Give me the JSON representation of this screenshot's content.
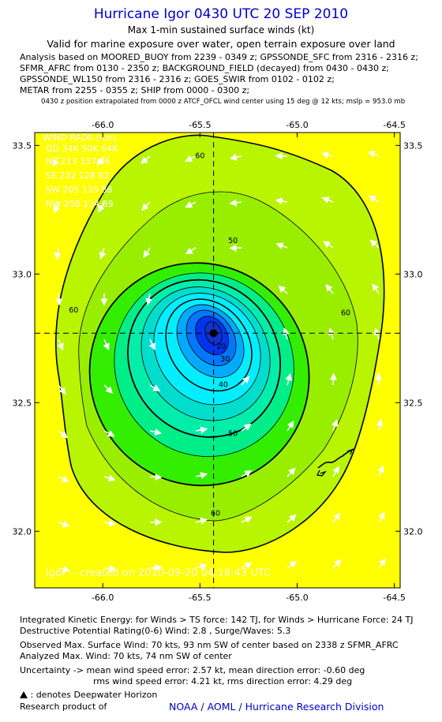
{
  "header": {
    "title": "Hurricane Igor 0430 UTC 20 SEP 2010",
    "subtitle": "Max 1-min sustained surface winds (kt)",
    "validity": "Valid for marine exposure over water, open terrain exposure over land",
    "analysis_lines": [
      "Analysis based on MOORED_BUOY from 2239 - 0349 z; GPSSONDE_SFC from 2316 - 2316 z;",
      "SFMR_AFRC from 0130 - 2350 z; BACKGROUND_FIELD (decayed) from 0430 - 0430 z;",
      "GPSSONDE_WL150 from 2316 - 2316 z; GOES_SWIR from 0102 - 0102 z;",
      "METAR from 2255 - 0355 z; SHIP from 0000 - 0300 z;"
    ],
    "position_note": "0430 z position extrapolated from 0000 z ATCF_OFCL wind center using 15 deg @ 12 kts; mslp = 953.0 mb"
  },
  "chart_data": {
    "type": "contour",
    "x_ticks": [
      "-66.0",
      "-65.5",
      "-65.0",
      "-64.5"
    ],
    "y_ticks": [
      "33.5",
      "33.0",
      "32.5",
      "32.0"
    ],
    "xlim": [
      -66.35,
      -64.47
    ],
    "ylim": [
      31.78,
      33.55
    ],
    "grid": false,
    "center": {
      "lon": -65.43,
      "lat": 32.77
    },
    "contour_labels": [
      {
        "value": "60",
        "lon": -65.5,
        "lat": 33.45
      },
      {
        "value": "50",
        "lon": -65.33,
        "lat": 33.12
      },
      {
        "value": "60",
        "lon": -66.15,
        "lat": 32.85
      },
      {
        "value": "60",
        "lon": -64.75,
        "lat": 32.84
      },
      {
        "value": "40",
        "lon": -65.38,
        "lat": 32.56
      },
      {
        "value": "30",
        "lon": -65.37,
        "lat": 32.66
      },
      {
        "value": "20",
        "lon": -65.39,
        "lat": 32.71
      },
      {
        "value": "50",
        "lon": -65.33,
        "lat": 32.37
      },
      {
        "value": "60",
        "lon": -65.42,
        "lat": 32.06
      }
    ],
    "wind_radii": {
      "title": "WIND RADII (nm)",
      "header": "QD  34K  50K  64K",
      "rows": [
        "NE  213  137   86",
        "SE  232  128   82",
        "SW  205  135   88",
        "NW  208  134   89"
      ]
    },
    "watermark": "Igor -- created on 2010-09-20 04:18:43 UTC"
  },
  "footer": {
    "ike": "Integrated Kinetic Energy:  for Winds > TS force: 142 TJ,  for Winds > Hurricane Force: 24 TJ",
    "destructive": "Destructive Potential Rating(0-6)   Wind: 2.8 , Surge/Waves: 5.3",
    "observed": "Observed Max. Surface Wind: 70 kts, 93 nm SW of center based on 2338 z SFMR_AFRC",
    "analyzed": "Analyzed Max. Wind: 70 kts, 74 nm SW of center",
    "uncertainty1": "Uncertainty -> mean wind speed error: 2.57 kt,   mean direction error:  -0.60 deg",
    "uncertainty2": "rms wind speed error: 4.21 kt,   rms direction error: 4.29 deg",
    "deepwater": ": denotes Deepwater Horizon",
    "research": "Research product of",
    "org": "NOAA / AOML / Hurricane Research Division"
  },
  "colors": {
    "title": "#0000cc",
    "background_yellow": "#ffff00",
    "contour_fills": [
      "#b9f400",
      "#99ee00",
      "#33ee00",
      "#00ee88",
      "#00eeaa",
      "#00ddcc",
      "#00eeff",
      "#00aaff",
      "#0077ff",
      "#0033ee",
      "#1133cc"
    ]
  }
}
